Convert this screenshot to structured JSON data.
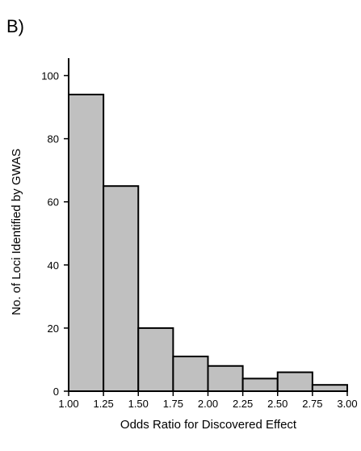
{
  "figure": {
    "panel_label": "B)"
  },
  "chart_data": {
    "type": "bar",
    "title": "",
    "xlabel": "Odds Ratio for Discovered Effect",
    "ylabel": "No. of Loci Identified by GWAS",
    "bin_edges": [
      1.0,
      1.25,
      1.5,
      1.75,
      2.0,
      2.25,
      2.5,
      2.75,
      3.0
    ],
    "x_tick_labels": [
      "1.00",
      "1.25",
      "1.50",
      "1.75",
      "2.00",
      "2.25",
      "2.50",
      "2.75",
      "3.00"
    ],
    "values": [
      94,
      65,
      20,
      11,
      8,
      4,
      6,
      2
    ],
    "y_ticks": [
      0,
      20,
      40,
      60,
      80,
      100
    ],
    "y_tick_labels": [
      "0",
      "20",
      "40",
      "60",
      "80",
      "100"
    ],
    "xlim": [
      1.0,
      3.0
    ],
    "ylim": [
      0,
      105
    ],
    "grid": false,
    "colors": {
      "bar_fill": "#c0c0c0",
      "bar_stroke": "#000000"
    }
  }
}
